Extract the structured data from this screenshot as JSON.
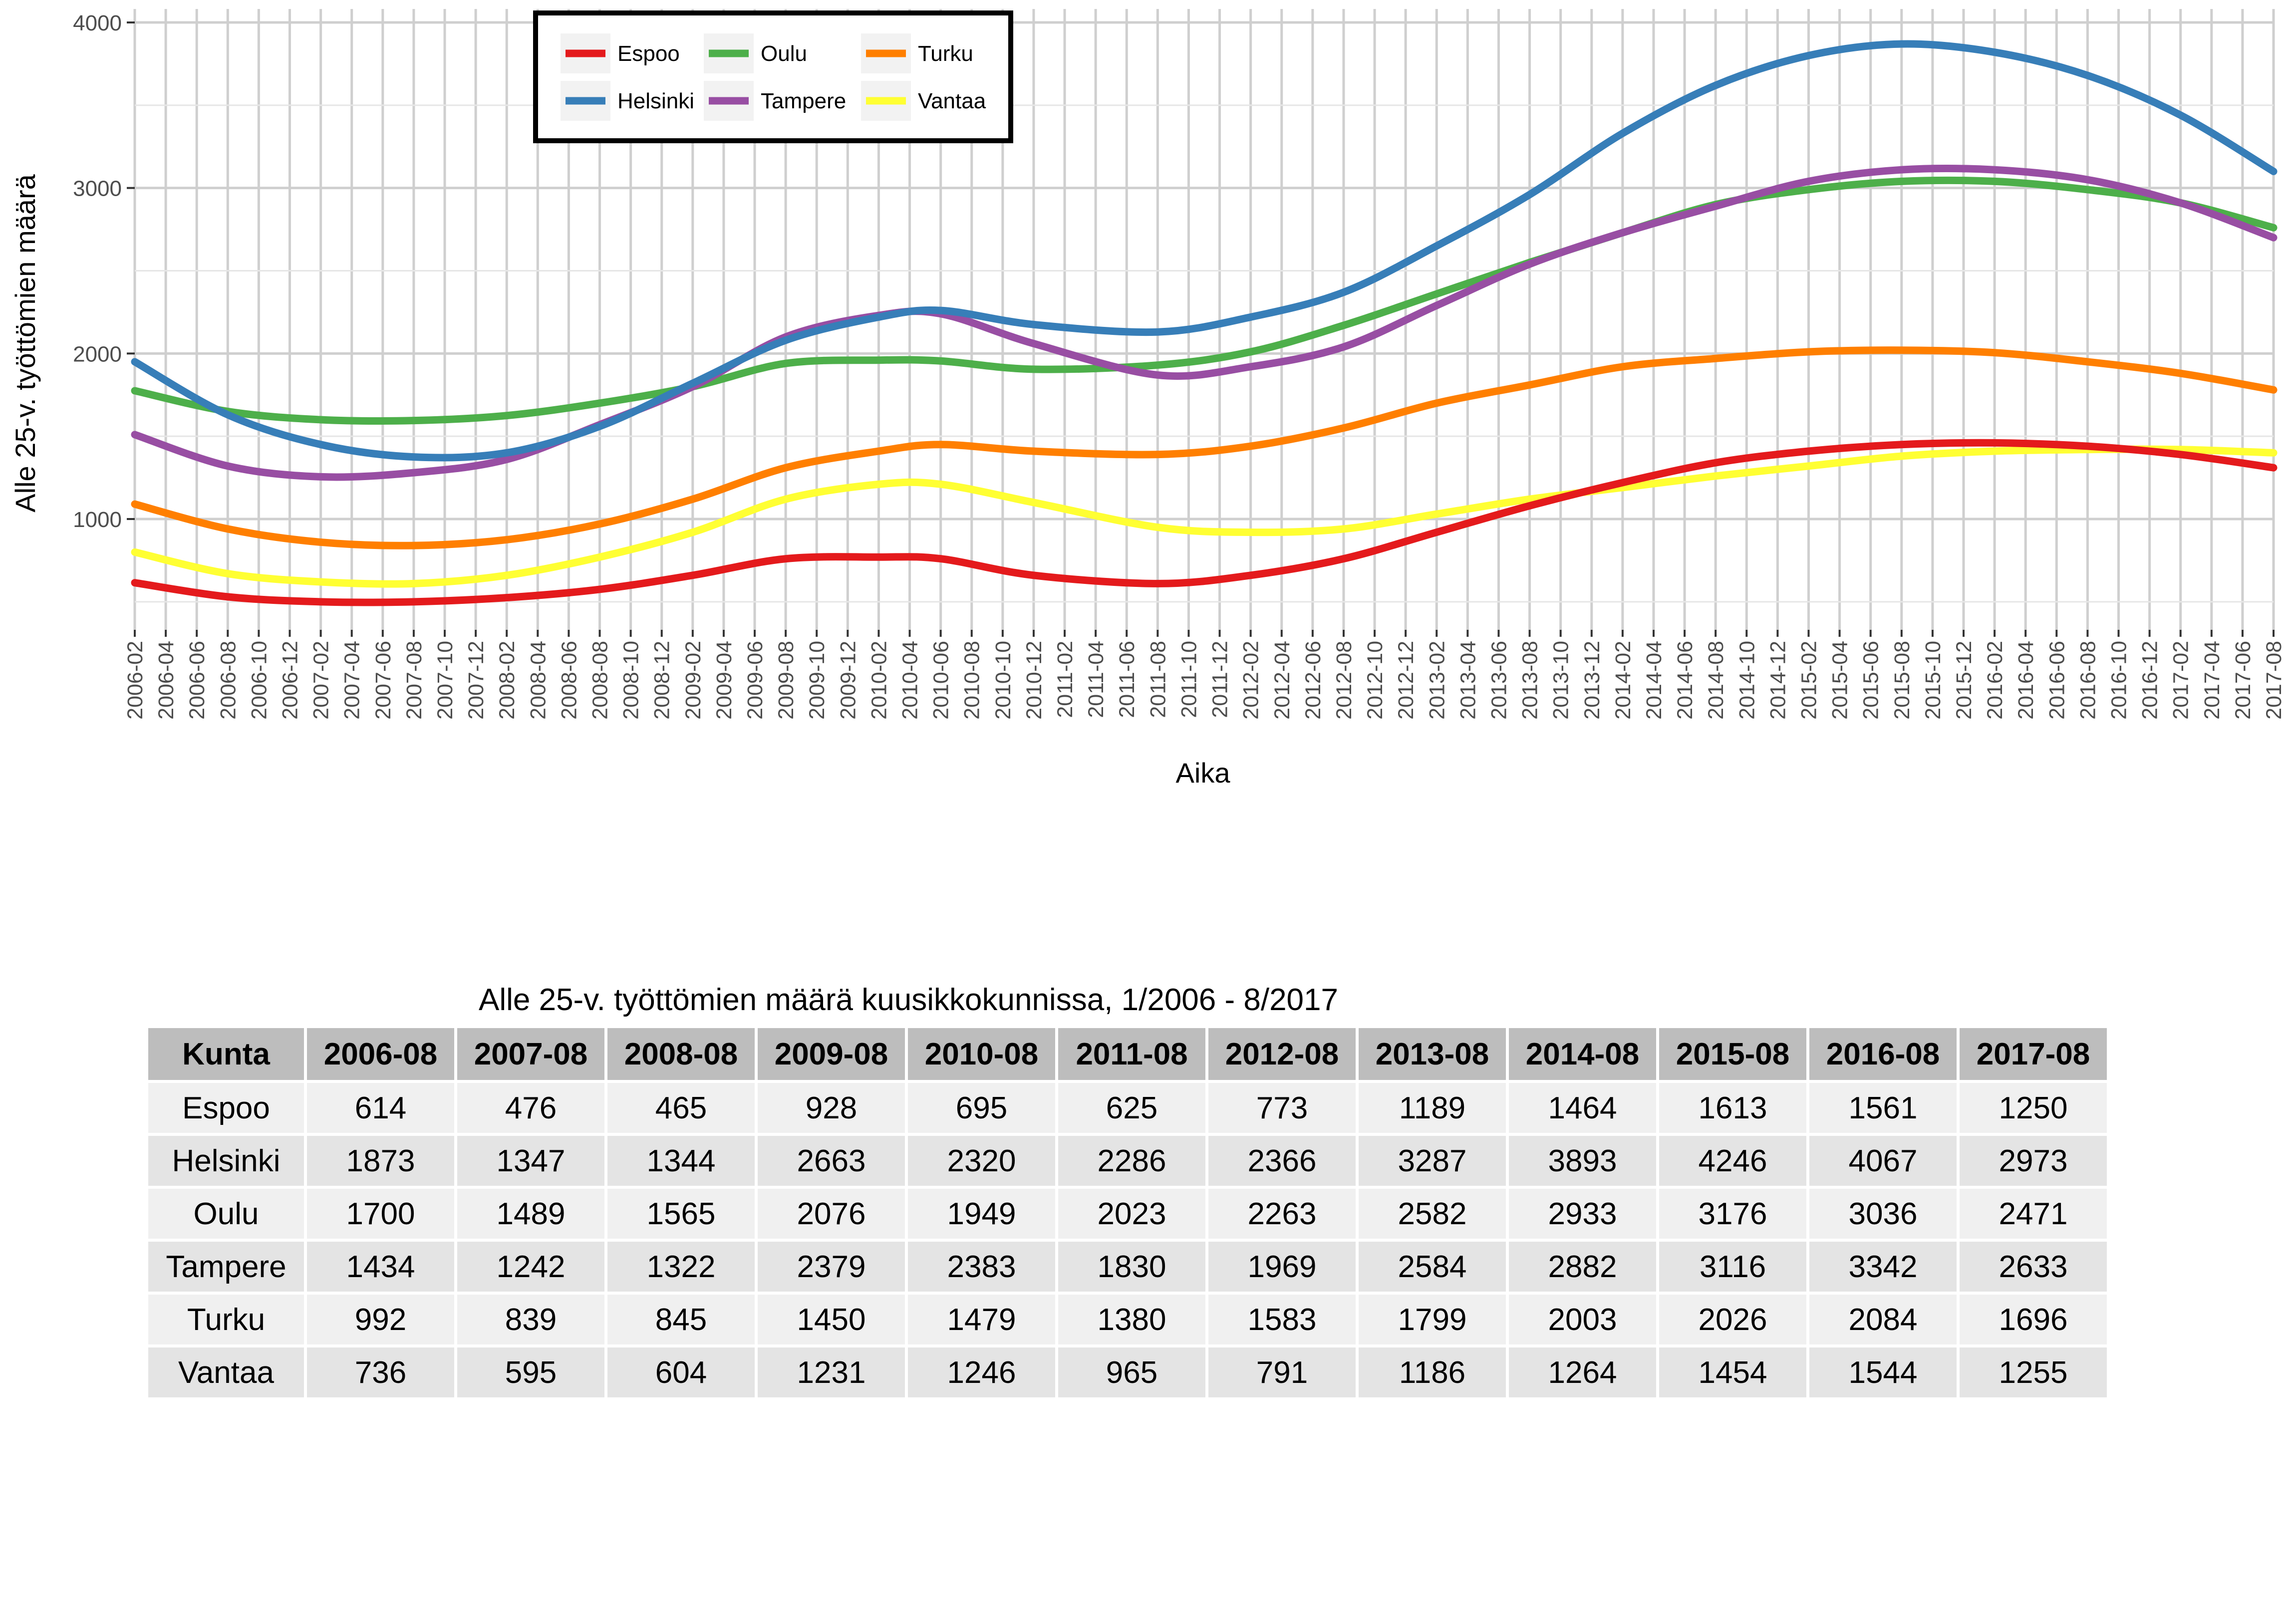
{
  "chart_data": {
    "type": "line",
    "ylabel": "Alle 25-v. työttömien määrä",
    "xlabel": "Aika",
    "ylim": [
      300,
      4000
    ],
    "yticks": [
      1000,
      2000,
      3000,
      4000
    ],
    "grid": true,
    "legend_position": "top-left inside",
    "x": [
      "2006-02",
      "2006-04",
      "2006-06",
      "2006-08",
      "2006-10",
      "2006-12",
      "2007-02",
      "2007-04",
      "2007-06",
      "2007-08",
      "2007-10",
      "2007-12",
      "2008-02",
      "2008-04",
      "2008-06",
      "2008-08",
      "2008-10",
      "2008-12",
      "2009-02",
      "2009-04",
      "2009-06",
      "2009-08",
      "2009-10",
      "2009-12",
      "2010-02",
      "2010-04",
      "2010-06",
      "2010-08",
      "2010-10",
      "2010-12",
      "2011-02",
      "2011-04",
      "2011-06",
      "2011-08",
      "2011-10",
      "2011-12",
      "2012-02",
      "2012-04",
      "2012-06",
      "2012-08",
      "2012-10",
      "2012-12",
      "2013-02",
      "2013-04",
      "2013-06",
      "2013-08",
      "2013-10",
      "2013-12",
      "2014-02",
      "2014-04",
      "2014-06",
      "2014-08",
      "2014-10",
      "2014-12",
      "2015-02",
      "2015-04",
      "2015-06",
      "2015-08",
      "2015-10",
      "2015-12",
      "2016-02",
      "2016-04",
      "2016-06",
      "2016-08",
      "2016-10",
      "2016-12",
      "2017-02",
      "2017-04",
      "2017-06",
      "2017-08"
    ],
    "series": [
      {
        "name": "Espoo",
        "color": "#e41a1c",
        "anchors": [
          [
            "2006-02",
            615
          ],
          [
            "2006-08",
            530
          ],
          [
            "2007-02",
            500
          ],
          [
            "2007-08",
            500
          ],
          [
            "2008-02",
            525
          ],
          [
            "2008-08",
            575
          ],
          [
            "2009-02",
            660
          ],
          [
            "2009-08",
            760
          ],
          [
            "2010-02",
            770
          ],
          [
            "2010-06",
            760
          ],
          [
            "2010-12",
            660
          ],
          [
            "2011-08",
            610
          ],
          [
            "2012-02",
            660
          ],
          [
            "2012-08",
            760
          ],
          [
            "2013-02",
            920
          ],
          [
            "2013-08",
            1080
          ],
          [
            "2014-02",
            1220
          ],
          [
            "2014-08",
            1340
          ],
          [
            "2015-02",
            1410
          ],
          [
            "2015-08",
            1450
          ],
          [
            "2016-02",
            1460
          ],
          [
            "2016-08",
            1440
          ],
          [
            "2017-02",
            1390
          ],
          [
            "2017-08",
            1310
          ]
        ]
      },
      {
        "name": "Helsinki",
        "color": "#377eb8",
        "anchors": [
          [
            "2006-02",
            1950
          ],
          [
            "2006-08",
            1630
          ],
          [
            "2007-02",
            1450
          ],
          [
            "2007-08",
            1375
          ],
          [
            "2008-02",
            1400
          ],
          [
            "2008-08",
            1560
          ],
          [
            "2009-02",
            1820
          ],
          [
            "2009-08",
            2080
          ],
          [
            "2010-02",
            2220
          ],
          [
            "2010-06",
            2260
          ],
          [
            "2010-12",
            2175
          ],
          [
            "2011-08",
            2130
          ],
          [
            "2012-02",
            2220
          ],
          [
            "2012-08",
            2370
          ],
          [
            "2013-02",
            2650
          ],
          [
            "2013-08",
            2960
          ],
          [
            "2014-02",
            3330
          ],
          [
            "2014-08",
            3620
          ],
          [
            "2015-02",
            3800
          ],
          [
            "2015-08",
            3870
          ],
          [
            "2016-02",
            3820
          ],
          [
            "2016-08",
            3680
          ],
          [
            "2017-02",
            3440
          ],
          [
            "2017-08",
            3100
          ]
        ]
      },
      {
        "name": "Oulu",
        "color": "#4daf4a",
        "anchors": [
          [
            "2006-02",
            1775
          ],
          [
            "2006-08",
            1650
          ],
          [
            "2007-02",
            1600
          ],
          [
            "2007-08",
            1595
          ],
          [
            "2008-02",
            1625
          ],
          [
            "2008-08",
            1700
          ],
          [
            "2009-02",
            1800
          ],
          [
            "2009-08",
            1940
          ],
          [
            "2010-02",
            1960
          ],
          [
            "2010-06",
            1955
          ],
          [
            "2010-12",
            1905
          ],
          [
            "2011-08",
            1930
          ],
          [
            "2012-02",
            2010
          ],
          [
            "2012-08",
            2170
          ],
          [
            "2013-02",
            2360
          ],
          [
            "2013-08",
            2550
          ],
          [
            "2014-02",
            2730
          ],
          [
            "2014-08",
            2900
          ],
          [
            "2015-02",
            2990
          ],
          [
            "2015-08",
            3040
          ],
          [
            "2016-02",
            3040
          ],
          [
            "2016-08",
            2990
          ],
          [
            "2017-02",
            2910
          ],
          [
            "2017-08",
            2760
          ]
        ]
      },
      {
        "name": "Tampere",
        "color": "#984ea3",
        "anchors": [
          [
            "2006-02",
            1510
          ],
          [
            "2006-08",
            1320
          ],
          [
            "2007-02",
            1255
          ],
          [
            "2007-08",
            1280
          ],
          [
            "2008-02",
            1360
          ],
          [
            "2008-08",
            1570
          ],
          [
            "2009-02",
            1800
          ],
          [
            "2009-08",
            2100
          ],
          [
            "2010-02",
            2230
          ],
          [
            "2010-06",
            2240
          ],
          [
            "2010-12",
            2060
          ],
          [
            "2011-08",
            1870
          ],
          [
            "2012-02",
            1920
          ],
          [
            "2012-08",
            2040
          ],
          [
            "2013-02",
            2290
          ],
          [
            "2013-08",
            2540
          ],
          [
            "2014-02",
            2730
          ],
          [
            "2014-08",
            2890
          ],
          [
            "2015-02",
            3040
          ],
          [
            "2015-08",
            3110
          ],
          [
            "2016-02",
            3110
          ],
          [
            "2016-08",
            3050
          ],
          [
            "2017-02",
            2910
          ],
          [
            "2017-08",
            2700
          ]
        ]
      },
      {
        "name": "Turku",
        "color": "#ff7f00",
        "anchors": [
          [
            "2006-02",
            1090
          ],
          [
            "2006-08",
            940
          ],
          [
            "2007-02",
            860
          ],
          [
            "2007-08",
            840
          ],
          [
            "2008-02",
            875
          ],
          [
            "2008-08",
            970
          ],
          [
            "2009-02",
            1120
          ],
          [
            "2009-08",
            1310
          ],
          [
            "2010-02",
            1410
          ],
          [
            "2010-06",
            1450
          ],
          [
            "2010-12",
            1410
          ],
          [
            "2011-08",
            1390
          ],
          [
            "2012-02",
            1440
          ],
          [
            "2012-08",
            1550
          ],
          [
            "2013-02",
            1700
          ],
          [
            "2013-08",
            1810
          ],
          [
            "2014-02",
            1920
          ],
          [
            "2014-08",
            1970
          ],
          [
            "2015-02",
            2010
          ],
          [
            "2015-08",
            2020
          ],
          [
            "2016-02",
            2005
          ],
          [
            "2016-08",
            1950
          ],
          [
            "2017-02",
            1880
          ],
          [
            "2017-08",
            1780
          ]
        ]
      },
      {
        "name": "Vantaa",
        "color": "#ffff33",
        "anchors": [
          [
            "2006-02",
            800
          ],
          [
            "2006-08",
            670
          ],
          [
            "2007-02",
            620
          ],
          [
            "2007-08",
            610
          ],
          [
            "2008-02",
            660
          ],
          [
            "2008-08",
            770
          ],
          [
            "2009-02",
            920
          ],
          [
            "2009-08",
            1120
          ],
          [
            "2010-02",
            1210
          ],
          [
            "2010-06",
            1210
          ],
          [
            "2010-12",
            1100
          ],
          [
            "2011-08",
            950
          ],
          [
            "2012-02",
            920
          ],
          [
            "2012-08",
            940
          ],
          [
            "2013-02",
            1030
          ],
          [
            "2013-08",
            1120
          ],
          [
            "2014-02",
            1190
          ],
          [
            "2014-08",
            1260
          ],
          [
            "2015-02",
            1320
          ],
          [
            "2015-08",
            1380
          ],
          [
            "2016-02",
            1410
          ],
          [
            "2016-08",
            1420
          ],
          [
            "2017-02",
            1420
          ],
          [
            "2017-08",
            1400
          ]
        ]
      }
    ]
  },
  "table": {
    "title": "Alle 25-v. työttömien määrä kuusikkokunnissa,  1/2006 - 8/2017",
    "headers": [
      "Kunta",
      "2006-08",
      "2007-08",
      "2008-08",
      "2009-08",
      "2010-08",
      "2011-08",
      "2012-08",
      "2013-08",
      "2014-08",
      "2015-08",
      "2016-08",
      "2017-08"
    ],
    "rows": [
      [
        "Espoo",
        "614",
        "476",
        "465",
        "928",
        "695",
        "625",
        "773",
        "1189",
        "1464",
        "1613",
        "1561",
        "1250"
      ],
      [
        "Helsinki",
        "1873",
        "1347",
        "1344",
        "2663",
        "2320",
        "2286",
        "2366",
        "3287",
        "3893",
        "4246",
        "4067",
        "2973"
      ],
      [
        "Oulu",
        "1700",
        "1489",
        "1565",
        "2076",
        "1949",
        "2023",
        "2263",
        "2582",
        "2933",
        "3176",
        "3036",
        "2471"
      ],
      [
        "Tampere",
        "1434",
        "1242",
        "1322",
        "2379",
        "2383",
        "1830",
        "1969",
        "2584",
        "2882",
        "3116",
        "3342",
        "2633"
      ],
      [
        "Turku",
        "992",
        "839",
        "845",
        "1450",
        "1479",
        "1380",
        "1583",
        "1799",
        "2003",
        "2026",
        "2084",
        "1696"
      ],
      [
        "Vantaa",
        "736",
        "595",
        "604",
        "1231",
        "1246",
        "965",
        "791",
        "1186",
        "1264",
        "1454",
        "1544",
        "1255"
      ]
    ]
  }
}
